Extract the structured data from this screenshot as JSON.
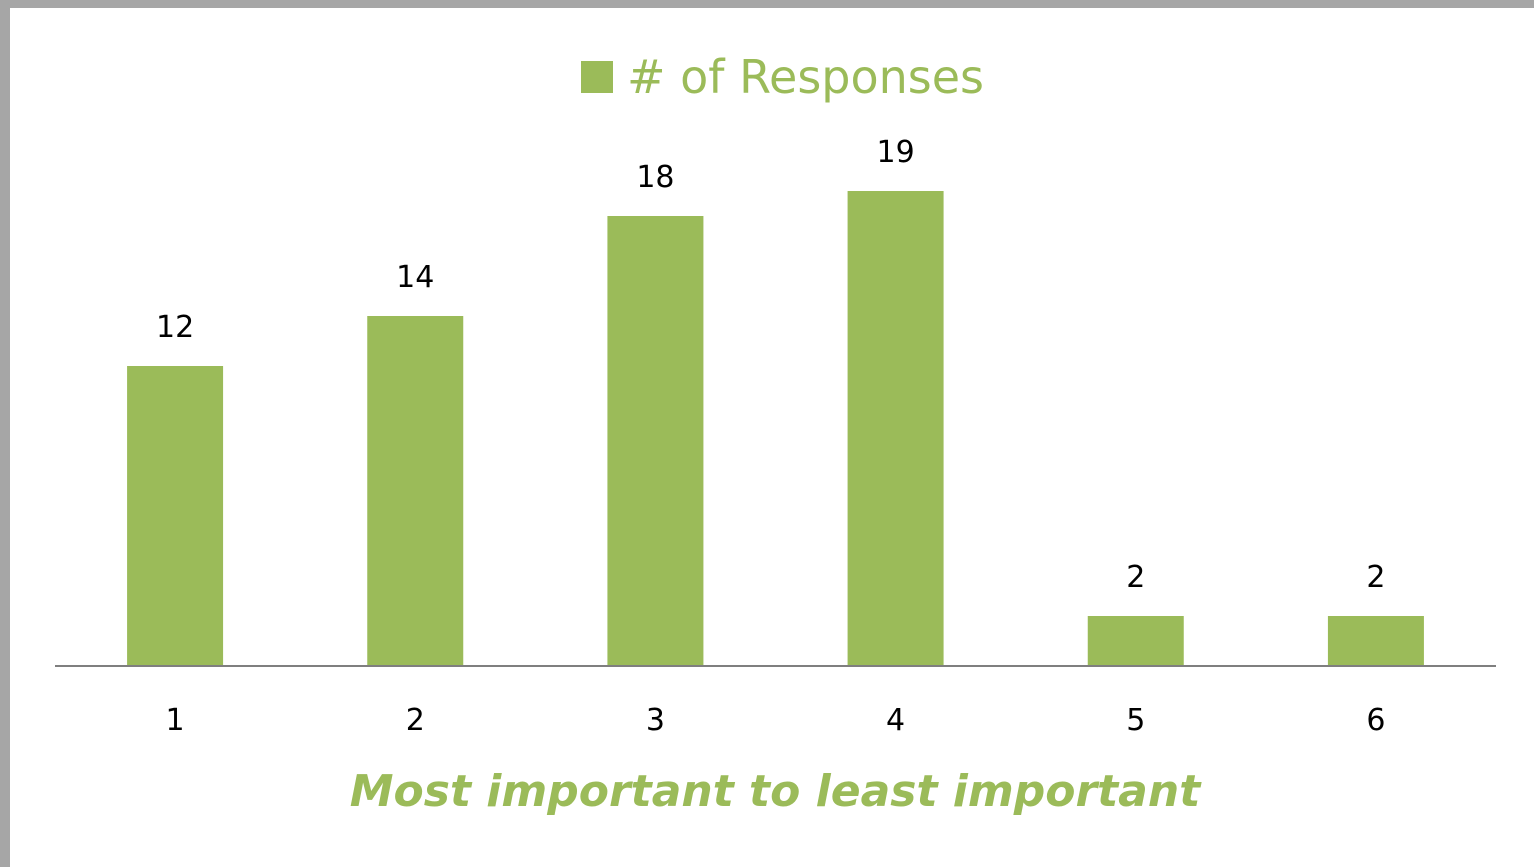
{
  "chart_data": {
    "type": "bar",
    "categories": [
      "1",
      "2",
      "3",
      "4",
      "5",
      "6"
    ],
    "series": [
      {
        "name": "# of Responses",
        "values": [
          12,
          14,
          18,
          19,
          2,
          2
        ]
      }
    ],
    "xlabel": "Most important to least important",
    "ylabel": "",
    "ylim": [
      0,
      20
    ],
    "grid": false,
    "legend": "top-center",
    "data_labels": true,
    "colors": {
      "bar": "#9bbb59",
      "legend_text": "#9bbb59",
      "xlabel": "#9bbb59",
      "axis": "#7f7f7f"
    }
  }
}
